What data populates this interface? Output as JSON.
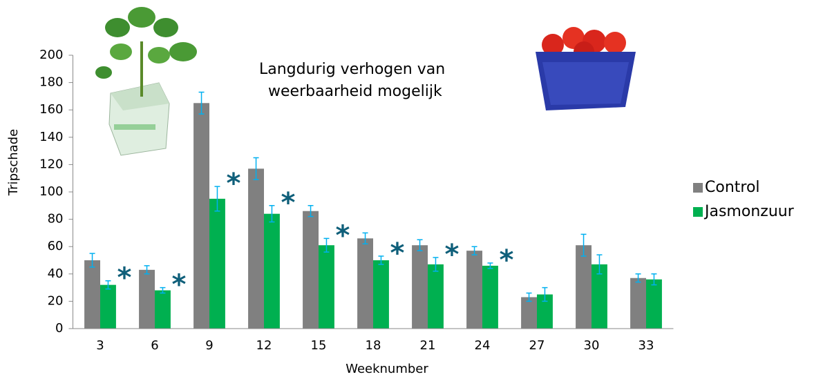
{
  "chart_data": {
    "type": "bar",
    "annotation_text": [
      "Langdurig verhogen van",
      "weerbaarheid mogelijk"
    ],
    "xlabel": "Weeknumber",
    "ylabel": "Tripschade",
    "categories": [
      "3",
      "6",
      "9",
      "12",
      "15",
      "18",
      "21",
      "24",
      "27",
      "30",
      "33"
    ],
    "series": [
      {
        "name": "Control",
        "color": "#808080",
        "values": [
          50,
          43,
          165,
          117,
          86,
          66,
          61,
          57,
          23,
          61,
          37
        ],
        "errors": [
          5,
          3,
          8,
          8,
          4,
          4,
          4,
          3,
          3,
          8,
          3
        ]
      },
      {
        "name": "Jasmonzuur",
        "color": "#00b050",
        "values": [
          32,
          28,
          95,
          84,
          61,
          50,
          47,
          46,
          25,
          47,
          36
        ],
        "errors": [
          3,
          2,
          9,
          6,
          5,
          3,
          5,
          2,
          5,
          7,
          4
        ]
      }
    ],
    "error_color": "#00b0f0",
    "markers": [
      {
        "text": "*",
        "category": "3"
      },
      {
        "text": "*",
        "category": "6"
      },
      {
        "text": "*",
        "category": "9"
      },
      {
        "text": "*",
        "category": "12"
      },
      {
        "text": "*",
        "category": "15"
      },
      {
        "text": "*",
        "category": "18"
      },
      {
        "text": "*",
        "category": "21"
      },
      {
        "text": "*",
        "category": "24"
      }
    ],
    "marker_color": "#0f5f7a",
    "ylim": [
      0,
      200
    ],
    "yticks": [
      0,
      20,
      40,
      60,
      80,
      100,
      120,
      140,
      160,
      180,
      200
    ],
    "legend": "right"
  }
}
